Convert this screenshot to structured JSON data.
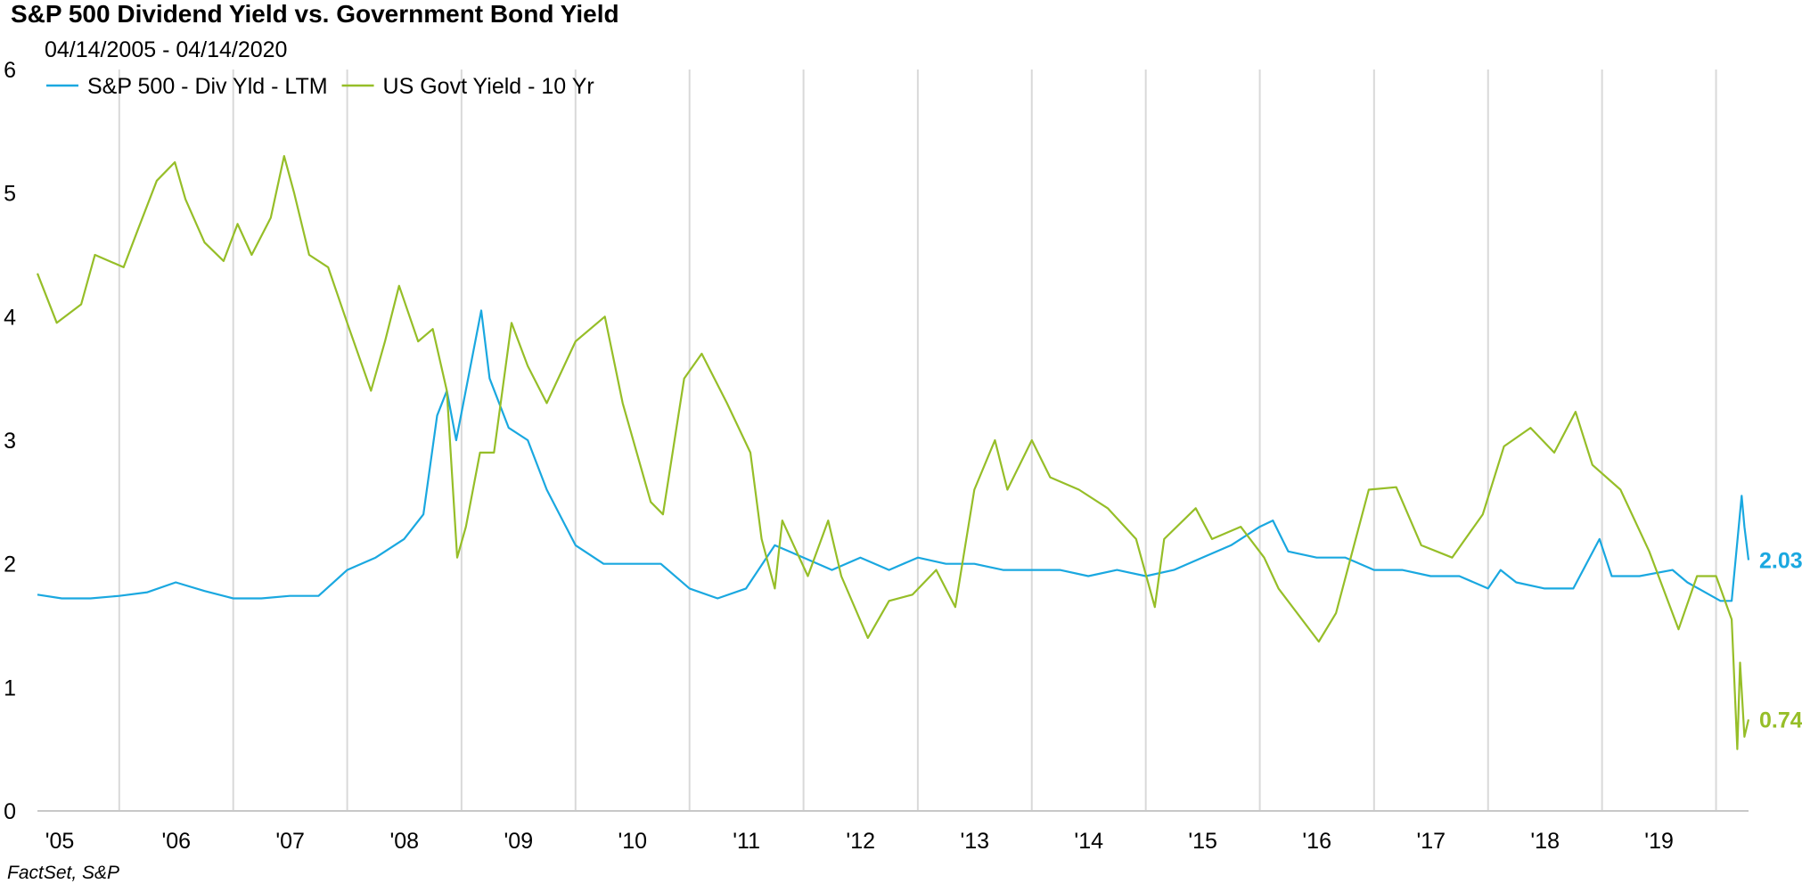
{
  "chart_data": {
    "type": "line",
    "title": "S&P 500 Dividend Yield vs. Government Bond Yield",
    "subtitle": "04/14/2005 - 04/14/2020",
    "source": "FactSet, S&P",
    "xlabel": "",
    "ylabel": "",
    "x_range": [
      "2005-04-14",
      "2020-04-14"
    ],
    "ylim": [
      0,
      6
    ],
    "y_ticks": [
      "0",
      "1",
      "2",
      "3",
      "4",
      "5",
      "6"
    ],
    "x_ticks": [
      {
        "label": "'05",
        "year": 2005
      },
      {
        "label": "'06",
        "year": 2006
      },
      {
        "label": "'07",
        "year": 2007
      },
      {
        "label": "'08",
        "year": 2008
      },
      {
        "label": "'09",
        "year": 2009
      },
      {
        "label": "'10",
        "year": 2010
      },
      {
        "label": "'11",
        "year": 2011
      },
      {
        "label": "'12",
        "year": 2012
      },
      {
        "label": "'13",
        "year": 2013
      },
      {
        "label": "'14",
        "year": 2014
      },
      {
        "label": "'15",
        "year": 2015
      },
      {
        "label": "'16",
        "year": 2016
      },
      {
        "label": "'17",
        "year": 2017
      },
      {
        "label": "'18",
        "year": 2018
      },
      {
        "label": "'19",
        "year": 2019
      }
    ],
    "grid": "vertical-year-lines",
    "legend": "top-left",
    "series": [
      {
        "name": "S&P 500 - Div Yld - LTM",
        "color": "#1AA8E0",
        "end_label": "2.03",
        "points": [
          [
            "2005-04-14",
            1.75
          ],
          [
            "2005-07-01",
            1.72
          ],
          [
            "2005-10-01",
            1.72
          ],
          [
            "2006-01-01",
            1.74
          ],
          [
            "2006-04-01",
            1.77
          ],
          [
            "2006-07-01",
            1.85
          ],
          [
            "2006-10-01",
            1.78
          ],
          [
            "2007-01-01",
            1.72
          ],
          [
            "2007-04-01",
            1.72
          ],
          [
            "2007-07-01",
            1.74
          ],
          [
            "2007-10-01",
            1.74
          ],
          [
            "2008-01-01",
            1.95
          ],
          [
            "2008-04-01",
            2.05
          ],
          [
            "2008-07-01",
            2.2
          ],
          [
            "2008-09-01",
            2.4
          ],
          [
            "2008-10-15",
            3.2
          ],
          [
            "2008-11-15",
            3.4
          ],
          [
            "2008-12-15",
            3.0
          ],
          [
            "2009-03-05",
            4.05
          ],
          [
            "2009-04-01",
            3.5
          ],
          [
            "2009-06-01",
            3.1
          ],
          [
            "2009-08-01",
            3.0
          ],
          [
            "2009-10-01",
            2.6
          ],
          [
            "2010-01-01",
            2.15
          ],
          [
            "2010-04-01",
            2.0
          ],
          [
            "2010-07-01",
            2.0
          ],
          [
            "2010-10-01",
            2.0
          ],
          [
            "2011-01-01",
            1.8
          ],
          [
            "2011-04-01",
            1.72
          ],
          [
            "2011-07-01",
            1.8
          ],
          [
            "2011-10-01",
            2.15
          ],
          [
            "2012-01-01",
            2.05
          ],
          [
            "2012-04-01",
            1.95
          ],
          [
            "2012-07-01",
            2.05
          ],
          [
            "2012-10-01",
            1.95
          ],
          [
            "2013-01-01",
            2.05
          ],
          [
            "2013-04-01",
            2.0
          ],
          [
            "2013-07-01",
            2.0
          ],
          [
            "2013-10-01",
            1.95
          ],
          [
            "2014-01-01",
            1.95
          ],
          [
            "2014-04-01",
            1.95
          ],
          [
            "2014-07-01",
            1.9
          ],
          [
            "2014-10-01",
            1.95
          ],
          [
            "2015-01-01",
            1.9
          ],
          [
            "2015-04-01",
            1.95
          ],
          [
            "2015-07-01",
            2.05
          ],
          [
            "2015-10-01",
            2.15
          ],
          [
            "2016-01-01",
            2.3
          ],
          [
            "2016-02-12",
            2.35
          ],
          [
            "2016-04-01",
            2.1
          ],
          [
            "2016-07-01",
            2.05
          ],
          [
            "2016-10-01",
            2.05
          ],
          [
            "2017-01-01",
            1.95
          ],
          [
            "2017-04-01",
            1.95
          ],
          [
            "2017-07-01",
            1.9
          ],
          [
            "2017-10-01",
            1.9
          ],
          [
            "2018-01-01",
            1.8
          ],
          [
            "2018-02-10",
            1.95
          ],
          [
            "2018-04-01",
            1.85
          ],
          [
            "2018-07-01",
            1.8
          ],
          [
            "2018-10-01",
            1.8
          ],
          [
            "2018-12-24",
            2.2
          ],
          [
            "2019-02-01",
            1.9
          ],
          [
            "2019-05-01",
            1.9
          ],
          [
            "2019-08-15",
            1.95
          ],
          [
            "2019-10-01",
            1.85
          ],
          [
            "2020-01-15",
            1.7
          ],
          [
            "2020-02-20",
            1.7
          ],
          [
            "2020-03-23",
            2.55
          ],
          [
            "2020-04-01",
            2.3
          ],
          [
            "2020-04-14",
            2.03
          ]
        ]
      },
      {
        "name": "US Govt Yield - 10 Yr",
        "color": "#96BE28",
        "end_label": "0.74",
        "points": [
          [
            "2005-04-14",
            4.35
          ],
          [
            "2005-06-15",
            3.95
          ],
          [
            "2005-09-01",
            4.1
          ],
          [
            "2005-10-15",
            4.5
          ],
          [
            "2006-01-15",
            4.4
          ],
          [
            "2006-03-01",
            4.7
          ],
          [
            "2006-05-01",
            5.1
          ],
          [
            "2006-06-28",
            5.25
          ],
          [
            "2006-08-01",
            4.95
          ],
          [
            "2006-10-01",
            4.6
          ],
          [
            "2006-12-01",
            4.45
          ],
          [
            "2007-01-15",
            4.75
          ],
          [
            "2007-03-01",
            4.5
          ],
          [
            "2007-05-01",
            4.8
          ],
          [
            "2007-06-13",
            5.3
          ],
          [
            "2007-07-15",
            5.0
          ],
          [
            "2007-09-01",
            4.5
          ],
          [
            "2007-11-01",
            4.4
          ],
          [
            "2008-01-01",
            3.95
          ],
          [
            "2008-03-17",
            3.4
          ],
          [
            "2008-05-01",
            3.8
          ],
          [
            "2008-06-15",
            4.25
          ],
          [
            "2008-08-15",
            3.8
          ],
          [
            "2008-10-01",
            3.9
          ],
          [
            "2008-11-15",
            3.4
          ],
          [
            "2008-12-18",
            2.05
          ],
          [
            "2009-01-15",
            2.3
          ],
          [
            "2009-03-01",
            2.9
          ],
          [
            "2009-04-15",
            2.9
          ],
          [
            "2009-06-10",
            3.95
          ],
          [
            "2009-08-01",
            3.6
          ],
          [
            "2009-10-01",
            3.3
          ],
          [
            "2010-01-01",
            3.8
          ],
          [
            "2010-04-05",
            4.0
          ],
          [
            "2010-06-01",
            3.3
          ],
          [
            "2010-08-30",
            2.5
          ],
          [
            "2010-10-08",
            2.4
          ],
          [
            "2010-12-15",
            3.5
          ],
          [
            "2011-02-09",
            3.7
          ],
          [
            "2011-05-01",
            3.3
          ],
          [
            "2011-07-15",
            2.9
          ],
          [
            "2011-08-20",
            2.2
          ],
          [
            "2011-10-01",
            1.8
          ],
          [
            "2011-10-25",
            2.35
          ],
          [
            "2012-01-15",
            1.9
          ],
          [
            "2012-03-20",
            2.35
          ],
          [
            "2012-05-01",
            1.9
          ],
          [
            "2012-07-25",
            1.4
          ],
          [
            "2012-10-01",
            1.7
          ],
          [
            "2012-12-15",
            1.75
          ],
          [
            "2013-03-01",
            1.95
          ],
          [
            "2013-05-01",
            1.65
          ],
          [
            "2013-07-01",
            2.6
          ],
          [
            "2013-09-05",
            3.0
          ],
          [
            "2013-10-15",
            2.6
          ],
          [
            "2014-01-01",
            3.0
          ],
          [
            "2014-03-01",
            2.7
          ],
          [
            "2014-06-01",
            2.6
          ],
          [
            "2014-09-01",
            2.45
          ],
          [
            "2014-12-01",
            2.2
          ],
          [
            "2015-01-30",
            1.65
          ],
          [
            "2015-03-01",
            2.2
          ],
          [
            "2015-06-10",
            2.45
          ],
          [
            "2015-08-01",
            2.2
          ],
          [
            "2015-11-01",
            2.3
          ],
          [
            "2016-01-15",
            2.05
          ],
          [
            "2016-03-01",
            1.8
          ],
          [
            "2016-07-08",
            1.37
          ],
          [
            "2016-09-01",
            1.6
          ],
          [
            "2016-12-15",
            2.6
          ],
          [
            "2017-03-13",
            2.62
          ],
          [
            "2017-06-01",
            2.15
          ],
          [
            "2017-09-08",
            2.05
          ],
          [
            "2017-12-15",
            2.4
          ],
          [
            "2018-02-21",
            2.95
          ],
          [
            "2018-05-17",
            3.1
          ],
          [
            "2018-08-01",
            2.9
          ],
          [
            "2018-10-08",
            3.23
          ],
          [
            "2018-12-01",
            2.8
          ],
          [
            "2019-03-01",
            2.6
          ],
          [
            "2019-06-01",
            2.1
          ],
          [
            "2019-09-03",
            1.47
          ],
          [
            "2019-11-01",
            1.9
          ],
          [
            "2020-01-01",
            1.9
          ],
          [
            "2020-02-20",
            1.55
          ],
          [
            "2020-03-09",
            0.5
          ],
          [
            "2020-03-18",
            1.2
          ],
          [
            "2020-04-01",
            0.6
          ],
          [
            "2020-04-14",
            0.74
          ]
        ]
      }
    ]
  }
}
